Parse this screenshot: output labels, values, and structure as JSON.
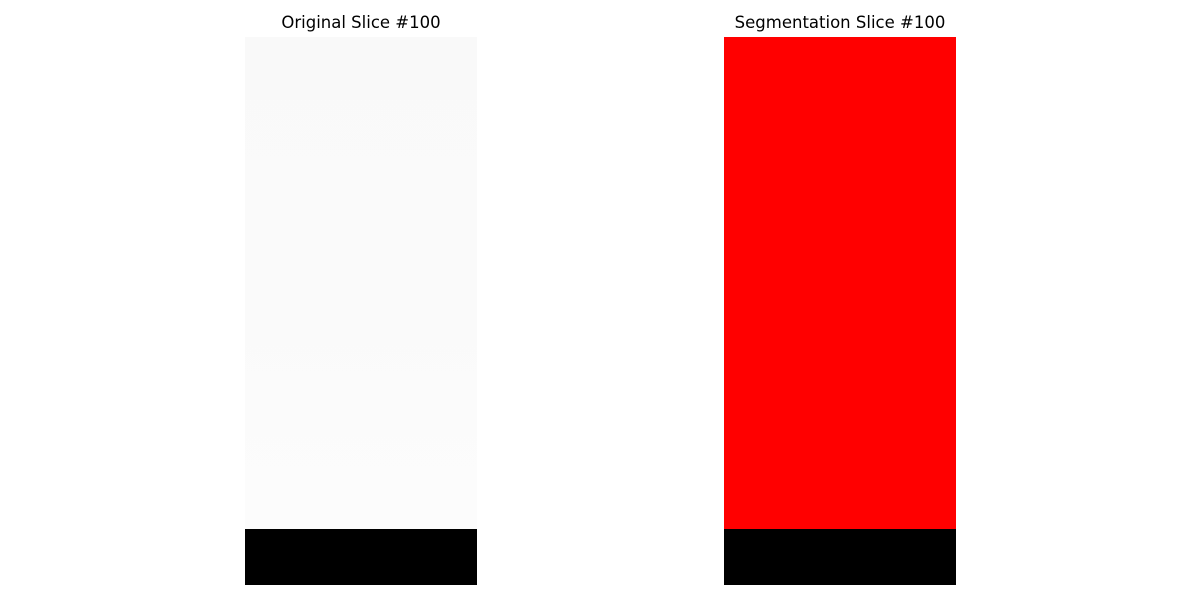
{
  "panels": {
    "original": {
      "title": "Original Slice #100",
      "background_color": "#000000"
    },
    "segmentation": {
      "title": "Segmentation Slice #100",
      "mask_color": "#ff0000",
      "background_color": "#000000"
    }
  }
}
